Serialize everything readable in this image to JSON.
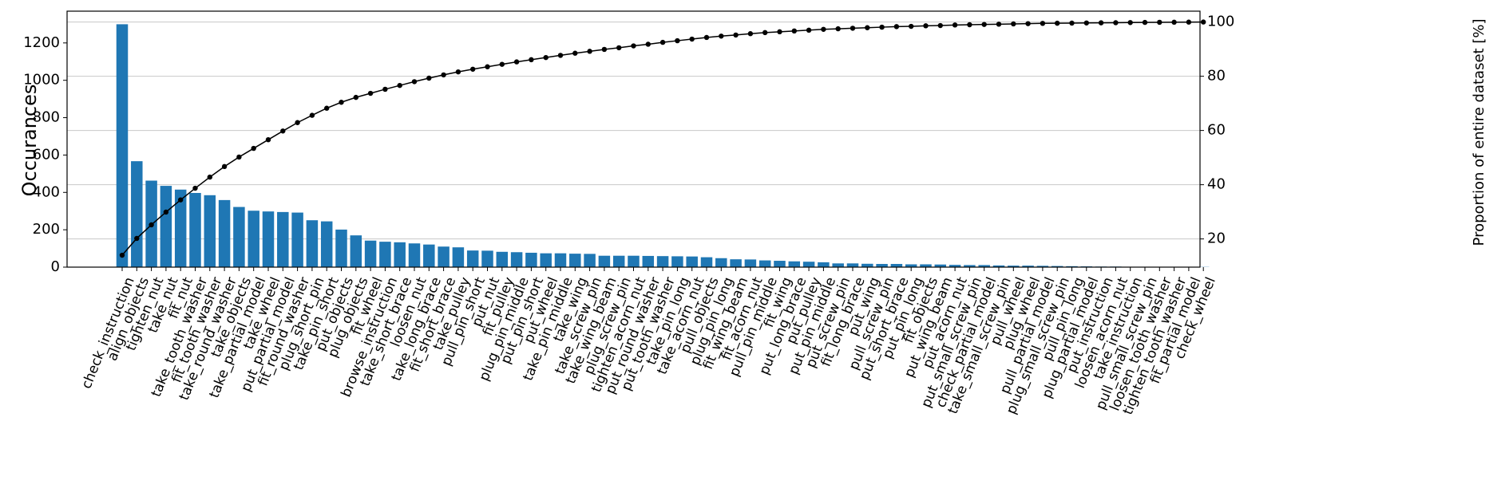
{
  "chart_data": {
    "type": "pareto",
    "title": "",
    "xlabel": "",
    "ylabel": "Occurances",
    "y2label": "Proportion of entire dataset [%]",
    "ylim": [
      0,
      1370
    ],
    "y2lim": [
      9.6,
      104.0
    ],
    "yticks": [
      0,
      200,
      400,
      600,
      800,
      1000,
      1200
    ],
    "y2ticks": [
      20,
      40,
      60,
      80,
      100
    ],
    "grid": true,
    "bar_color": "#1f77b4",
    "line_color": "#000000",
    "categories": [
      "check_instruction",
      "align_objects",
      "tighten_nut",
      "take_nut",
      "fit_nut",
      "take_tooth_washer",
      "fit_tooth_washer",
      "take_round_washer",
      "take_objects",
      "take_partial_model",
      "take_wheel",
      "put_partial_model",
      "fit_round_washer",
      "plug_short_pin",
      "take_pin_short",
      "put_objects",
      "plug_objects",
      "fit_wheel",
      "browse_instruction",
      "take_short_brace",
      "loosen_nut",
      "take_long_brace",
      "fit_short_brace",
      "take_pulley",
      "pull_pin_short",
      "put_nut",
      "fit_pulley",
      "plug_pin_middle",
      "put_pin_short",
      "put_wheel",
      "take_pin_middle",
      "take_wing",
      "take_screw_pin",
      "take_wing_beam",
      "plug_screw_pin",
      "tighten_acorn_nut",
      "put_round_washer",
      "put_tooth_washer",
      "take_pin_long",
      "take_acorn_nut",
      "pull_objects",
      "plug_pin_long",
      "fit_wing_beam",
      "fit_acorn_nut",
      "pull_pin_middle",
      "fit_wing",
      "put_long_brace",
      "put_pulley",
      "put_pin_middle",
      "put_screw_pin",
      "fit_long_brace",
      "put_wing",
      "pull_screw_pin",
      "put_short_brace",
      "put_pin_long",
      "fit_objects",
      "put_wing_beam",
      "put_acorn_nut",
      "put_small_screw_pin",
      "check_partial_model",
      "take_small_screw_pin",
      "pull_wheel",
      "plug_wheel",
      "pull_partial_model",
      "plug_small_screw_pin",
      "pull_pin_long",
      "plug_partial_model",
      "put_instruction",
      "loosen_acorn_nut",
      "take_instruction",
      "pull_small_screw_pin",
      "loosen_tooth_washer",
      "tighten_tooth_washer",
      "fit_partial_model",
      "check_wheel"
    ],
    "values": [
      1300,
      567,
      463,
      435,
      415,
      397,
      385,
      359,
      322,
      302,
      298,
      295,
      292,
      251,
      245,
      201,
      170,
      142,
      136,
      133,
      127,
      121,
      110,
      106,
      89,
      88,
      82,
      80,
      77,
      74,
      74,
      72,
      71,
      61,
      61,
      61,
      60,
      59,
      58,
      57,
      53,
      48,
      42,
      41,
      36,
      34,
      31,
      29,
      26,
      20,
      20,
      18,
      17,
      17,
      15,
      15,
      14,
      12,
      11,
      11,
      9,
      8,
      8,
      7,
      6,
      5,
      4,
      3,
      3,
      2,
      2,
      2,
      1,
      1,
      1
    ],
    "cumulative_percent": [
      14.0,
      20.2,
      25.2,
      29.9,
      34.4,
      38.7,
      42.8,
      46.7,
      50.2,
      53.4,
      56.6,
      59.8,
      62.9,
      65.6,
      68.2,
      70.4,
      72.2,
      73.7,
      75.2,
      76.6,
      78.0,
      79.3,
      80.5,
      81.6,
      82.6,
      83.5,
      84.4,
      85.3,
      86.1,
      86.9,
      87.7,
      88.5,
      89.2,
      89.9,
      90.5,
      91.2,
      91.8,
      92.5,
      93.1,
      93.7,
      94.3,
      94.8,
      95.2,
      95.7,
      96.1,
      96.4,
      96.7,
      97.0,
      97.3,
      97.5,
      97.7,
      97.9,
      98.1,
      98.3,
      98.4,
      98.6,
      98.7,
      98.9,
      99.0,
      99.1,
      99.2,
      99.3,
      99.4,
      99.5,
      99.55,
      99.6,
      99.65,
      99.7,
      99.75,
      99.8,
      99.85,
      99.9,
      99.93,
      99.97,
      100.0
    ]
  }
}
